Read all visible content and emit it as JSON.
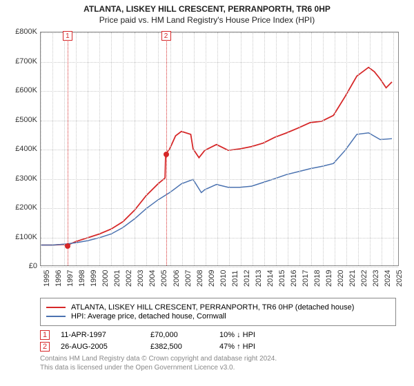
{
  "title": "ATLANTA, LISKEY HILL CRESCENT, PERRANPORTH, TR6 0HP",
  "subtitle": "Price paid vs. HM Land Registry's House Price Index (HPI)",
  "chart": {
    "type": "line",
    "background_color": "#ffffff",
    "grid_color": "#c8c8c8",
    "border_color": "#888888",
    "x": {
      "domain_years": [
        1995,
        2025.5
      ],
      "ticks": [
        1995,
        1996,
        1997,
        1998,
        1999,
        2000,
        2001,
        2002,
        2003,
        2004,
        2005,
        2006,
        2007,
        2008,
        2009,
        2010,
        2011,
        2012,
        2013,
        2014,
        2015,
        2016,
        2017,
        2018,
        2019,
        2020,
        2021,
        2022,
        2023,
        2024,
        2025
      ]
    },
    "y": {
      "domain": [
        0,
        800000
      ],
      "ticks": [
        0,
        100000,
        200000,
        300000,
        400000,
        500000,
        600000,
        700000,
        800000
      ],
      "labels": [
        "£0",
        "£100K",
        "£200K",
        "£300K",
        "£400K",
        "£500K",
        "£600K",
        "£700K",
        "£800K"
      ]
    },
    "series": [
      {
        "id": "property",
        "label": "ATLANTA, LISKEY HILL CRESCENT, PERRANPORTH, TR6 0HP (detached house)",
        "color": "#d62728",
        "width": 1.8,
        "points": [
          [
            1995,
            70000
          ],
          [
            1996,
            70000
          ],
          [
            1997,
            72000
          ],
          [
            1997.28,
            70000
          ],
          [
            1998,
            82000
          ],
          [
            1999,
            95000
          ],
          [
            2000,
            108000
          ],
          [
            2001,
            125000
          ],
          [
            2002,
            150000
          ],
          [
            2003,
            190000
          ],
          [
            2004,
            240000
          ],
          [
            2005,
            280000
          ],
          [
            2005.6,
            300000
          ],
          [
            2005.65,
            382500
          ],
          [
            2006,
            400000
          ],
          [
            2006.5,
            445000
          ],
          [
            2007,
            460000
          ],
          [
            2007.8,
            450000
          ],
          [
            2008,
            400000
          ],
          [
            2008.5,
            370000
          ],
          [
            2009,
            395000
          ],
          [
            2010,
            415000
          ],
          [
            2011,
            395000
          ],
          [
            2012,
            400000
          ],
          [
            2013,
            408000
          ],
          [
            2014,
            420000
          ],
          [
            2015,
            440000
          ],
          [
            2016,
            455000
          ],
          [
            2017,
            472000
          ],
          [
            2018,
            490000
          ],
          [
            2019,
            495000
          ],
          [
            2020,
            515000
          ],
          [
            2021,
            580000
          ],
          [
            2022,
            650000
          ],
          [
            2023,
            680000
          ],
          [
            2023.5,
            665000
          ],
          [
            2024,
            640000
          ],
          [
            2024.5,
            610000
          ],
          [
            2025,
            630000
          ]
        ]
      },
      {
        "id": "hpi",
        "label": "HPI: Average price, detached house, Cornwall",
        "color": "#4a72b0",
        "width": 1.5,
        "points": [
          [
            1995,
            70000
          ],
          [
            1996,
            70000
          ],
          [
            1997,
            73000
          ],
          [
            1998,
            78000
          ],
          [
            1999,
            85000
          ],
          [
            2000,
            95000
          ],
          [
            2001,
            108000
          ],
          [
            2002,
            130000
          ],
          [
            2003,
            160000
          ],
          [
            2004,
            195000
          ],
          [
            2005,
            225000
          ],
          [
            2006,
            250000
          ],
          [
            2007,
            280000
          ],
          [
            2008,
            295000
          ],
          [
            2008.7,
            250000
          ],
          [
            2009,
            260000
          ],
          [
            2010,
            278000
          ],
          [
            2011,
            268000
          ],
          [
            2012,
            268000
          ],
          [
            2013,
            272000
          ],
          [
            2014,
            285000
          ],
          [
            2015,
            298000
          ],
          [
            2016,
            312000
          ],
          [
            2017,
            322000
          ],
          [
            2018,
            332000
          ],
          [
            2019,
            340000
          ],
          [
            2020,
            350000
          ],
          [
            2021,
            395000
          ],
          [
            2022,
            450000
          ],
          [
            2023,
            455000
          ],
          [
            2024,
            432000
          ],
          [
            2025,
            435000
          ]
        ]
      }
    ],
    "events": [
      {
        "n": 1,
        "year": 1997.28,
        "price": 70000,
        "color": "#d62728",
        "date": "11-APR-1997",
        "price_fmt": "£70,000",
        "delta": "10% ↓ HPI"
      },
      {
        "n": 2,
        "year": 2005.65,
        "price": 382500,
        "color": "#d62728",
        "date": "26-AUG-2005",
        "price_fmt": "£382,500",
        "delta": "47% ↑ HPI"
      }
    ]
  },
  "legend_title_fontsize": 11,
  "license_line1": "Contains HM Land Registry data © Crown copyright and database right 2024.",
  "license_line2": "This data is licensed under the Open Government Licence v3.0."
}
